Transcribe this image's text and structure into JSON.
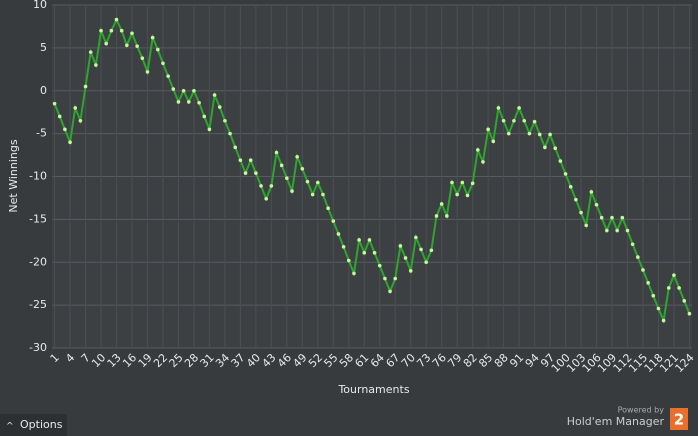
{
  "chart_data": {
    "type": "line",
    "x_label": "Tournaments",
    "y_label": "Net Winnings",
    "x": [
      1,
      2,
      3,
      4,
      5,
      6,
      7,
      8,
      9,
      10,
      11,
      12,
      13,
      14,
      15,
      16,
      17,
      18,
      19,
      20,
      21,
      22,
      23,
      24,
      25,
      26,
      27,
      28,
      29,
      30,
      31,
      32,
      33,
      34,
      35,
      36,
      37,
      38,
      39,
      40,
      41,
      42,
      43,
      44,
      45,
      46,
      47,
      48,
      49,
      50,
      51,
      52,
      53,
      54,
      55,
      56,
      57,
      58,
      59,
      60,
      61,
      62,
      63,
      64,
      65,
      66,
      67,
      68,
      69,
      70,
      71,
      72,
      73,
      74,
      75,
      76,
      77,
      78,
      79,
      80,
      81,
      82,
      83,
      84,
      85,
      86,
      87,
      88,
      89,
      90,
      91,
      92,
      93,
      94,
      95,
      96,
      97,
      98,
      99,
      100,
      101,
      102,
      103,
      104,
      105,
      106,
      107,
      108,
      109,
      110,
      111,
      112,
      113,
      114,
      115,
      116,
      117,
      118,
      119,
      120,
      121,
      122,
      123,
      124
    ],
    "values": [
      -1.5,
      -3,
      -4.5,
      -6,
      -2,
      -3.5,
      0.5,
      4.5,
      3,
      7,
      5.5,
      7,
      8.3,
      7,
      5.3,
      6.7,
      5.2,
      3.8,
      2.2,
      6.2,
      4.8,
      3.2,
      1.7,
      0.2,
      -1.3,
      0,
      -1.3,
      0,
      -1.4,
      -3,
      -4.5,
      -0.5,
      -1.9,
      -3.5,
      -5,
      -6.6,
      -8.1,
      -9.6,
      -8.1,
      -9.6,
      -11.1,
      -12.6,
      -11.1,
      -7.2,
      -8.7,
      -10.2,
      -11.7,
      -7.7,
      -9.1,
      -10.6,
      -12.1,
      -10.7,
      -12.1,
      -13.7,
      -15.2,
      -16.7,
      -18.2,
      -19.8,
      -21.3,
      -17.4,
      -18.9,
      -17.4,
      -18.9,
      -20.4,
      -21.9,
      -23.4,
      -21.9,
      -18.1,
      -19.5,
      -21,
      -17.1,
      -18.5,
      -20,
      -18.6,
      -14.6,
      -13.2,
      -14.6,
      -10.7,
      -12.1,
      -10.7,
      -12.2,
      -10.8,
      -6.9,
      -8.3,
      -4.5,
      -5.9,
      -2,
      -3.5,
      -5,
      -3.5,
      -2,
      -3.5,
      -5,
      -3.6,
      -5.1,
      -6.6,
      -5.1,
      -6.7,
      -8.2,
      -9.7,
      -11.2,
      -12.7,
      -14.2,
      -15.7,
      -11.8,
      -13.3,
      -14.8,
      -16.3,
      -14.8,
      -16.3,
      -14.8,
      -16.3,
      -17.9,
      -19.4,
      -20.9,
      -22.4,
      -23.9,
      -25.4,
      -26.8,
      -23,
      -21.5,
      -23,
      -24.5,
      -26
    ],
    "color": "#2ea52e",
    "marker_color": "#c8f5a0",
    "xlim": [
      0.5,
      124.5
    ],
    "xticks": [
      1,
      4,
      7,
      10,
      13,
      16,
      19,
      22,
      25,
      28,
      31,
      34,
      37,
      40,
      43,
      46,
      49,
      52,
      55,
      58,
      61,
      64,
      67,
      70,
      73,
      76,
      79,
      82,
      85,
      88,
      91,
      94,
      97,
      100,
      103,
      106,
      109,
      112,
      115,
      118,
      121,
      124
    ],
    "ylim": [
      -30,
      10
    ],
    "yticks": [
      -30,
      -25,
      -20,
      -15,
      -10,
      -5,
      0,
      5,
      10
    ],
    "grid": true
  },
  "ui": {
    "options_button": "Options",
    "powered_by": "Powered by",
    "brand": "Hold'em Manager",
    "brand_badge": "2"
  }
}
